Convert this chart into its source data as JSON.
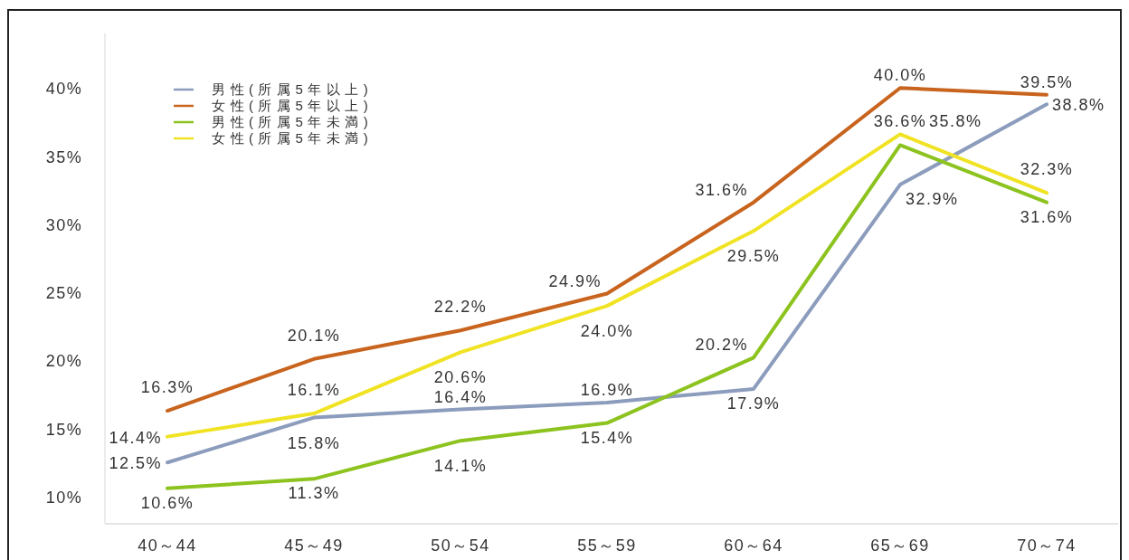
{
  "chart_data": {
    "type": "line",
    "categories": [
      "40～44",
      "45～49",
      "50～54",
      "55～59",
      "60～64",
      "65～69",
      "70～74"
    ],
    "series": [
      {
        "name": "男性(所属5年以上)",
        "color": "#8c9cbc",
        "values": [
          12.5,
          15.8,
          16.4,
          16.9,
          17.9,
          32.9,
          38.8
        ],
        "value_labels": [
          "12.5%",
          "15.8%",
          "16.4%",
          "16.9%",
          "17.9%",
          "32.9%",
          "38.8%"
        ]
      },
      {
        "name": "女性(所属5年以上)",
        "color": "#c8641e",
        "values": [
          16.3,
          20.1,
          22.2,
          24.9,
          31.6,
          40.0,
          39.5
        ],
        "value_labels": [
          "16.3%",
          "20.1%",
          "22.2%",
          "24.9%",
          "31.6%",
          "40.0%",
          "39.5%"
        ]
      },
      {
        "name": "男性(所属5年未満)",
        "color": "#8cc31e",
        "values": [
          10.6,
          11.3,
          14.1,
          15.4,
          20.2,
          35.8,
          31.6
        ],
        "value_labels": [
          "10.6%",
          "11.3%",
          "14.1%",
          "15.4%",
          "20.2%",
          "35.8%",
          "31.6%"
        ]
      },
      {
        "name": "女性(所属5年未満)",
        "color": "#f0e324",
        "values": [
          14.4,
          16.1,
          20.6,
          24.0,
          29.5,
          36.6,
          32.3
        ],
        "value_labels": [
          "14.4%",
          "16.1%",
          "20.6%",
          "24.0%",
          "29.5%",
          "36.6%",
          "32.3%"
        ]
      }
    ],
    "ylim": [
      8,
      44
    ],
    "yticks": [
      {
        "value": 10,
        "label": "10%"
      },
      {
        "value": 15,
        "label": "15%"
      },
      {
        "value": 20,
        "label": "20%"
      },
      {
        "value": 25,
        "label": "25%"
      },
      {
        "value": 30,
        "label": "30%"
      },
      {
        "value": 35,
        "label": "35%"
      },
      {
        "value": 40,
        "label": "40%"
      }
    ],
    "legend": "top left",
    "line_style": "solid"
  }
}
